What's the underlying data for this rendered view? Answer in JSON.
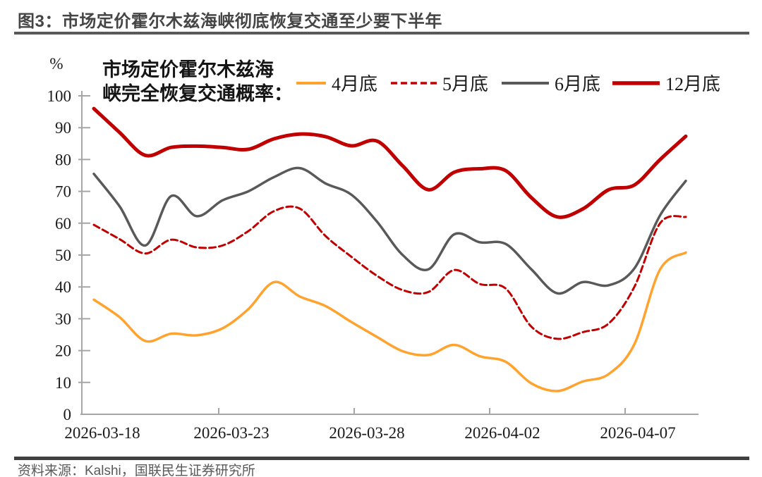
{
  "header": {
    "title": "图3：市场定价霍尔木兹海峡彻底恢复交通至少要下半年"
  },
  "footer": {
    "source": "资料来源：Kalshi，国联民生证券研究所"
  },
  "chart_data": {
    "type": "line",
    "annotation": [
      "市场定价霍尔木兹海",
      "峡完全恢复交通概率："
    ],
    "y_axis": {
      "unit": "%",
      "min": 0,
      "max": 100,
      "tick_step": 10,
      "ticks": [
        0,
        10,
        20,
        30,
        40,
        50,
        60,
        70,
        80,
        90,
        100
      ]
    },
    "x_axis": {
      "tick_labels": [
        "2026-03-18",
        "2026-03-23",
        "2026-03-28",
        "2026-04-02",
        "2026-04-07"
      ]
    },
    "grid": false,
    "legend_position": "top",
    "sampling_note": "probability (%), ~daily samples",
    "series": [
      {
        "name": "4月底",
        "color": "#FFA32E",
        "line_style": "solid",
        "values": [
          36,
          30.5,
          23,
          25.3,
          24.8,
          27,
          33,
          41.5,
          37,
          34,
          29,
          24.3,
          19.8,
          18.6,
          21.8,
          18.2,
          16.5,
          9.7,
          7.3,
          10.3,
          12.6,
          22,
          45.5,
          50.8
        ]
      },
      {
        "name": "5月底",
        "color": "#C00000",
        "line_style": "dashed",
        "values": [
          59.5,
          55,
          50.5,
          54.8,
          52.4,
          53,
          57.5,
          63.8,
          64.6,
          56,
          49.5,
          43.5,
          39,
          38.4,
          45.3,
          40.9,
          39.5,
          27.5,
          23.7,
          25.8,
          28.5,
          40,
          60,
          62
        ]
      },
      {
        "name": "6月底",
        "color": "#595959",
        "line_style": "solid",
        "values": [
          75.5,
          65.3,
          53,
          68.5,
          62.2,
          67.2,
          70,
          74.5,
          77.3,
          72.5,
          69,
          60.5,
          50,
          45.5,
          56.5,
          54,
          53.5,
          45.5,
          38,
          41.5,
          40.5,
          45.8,
          62.5,
          73.3
        ]
      },
      {
        "name": "12月底",
        "color": "#C00000",
        "line_style": "solid",
        "values": [
          96,
          88.5,
          81.3,
          83.8,
          84.2,
          83.8,
          83.2,
          86.5,
          88,
          87.2,
          84.3,
          85.8,
          78,
          70.5,
          76,
          77.1,
          76.5,
          68,
          62,
          64.5,
          70.5,
          72,
          80,
          87.3
        ]
      }
    ]
  },
  "colors": {
    "axis": "#A6A6A6",
    "tick_label": "#1A1A1A",
    "title": "#454545",
    "rule_top": "#595959",
    "rule_bottom": "#404040"
  }
}
